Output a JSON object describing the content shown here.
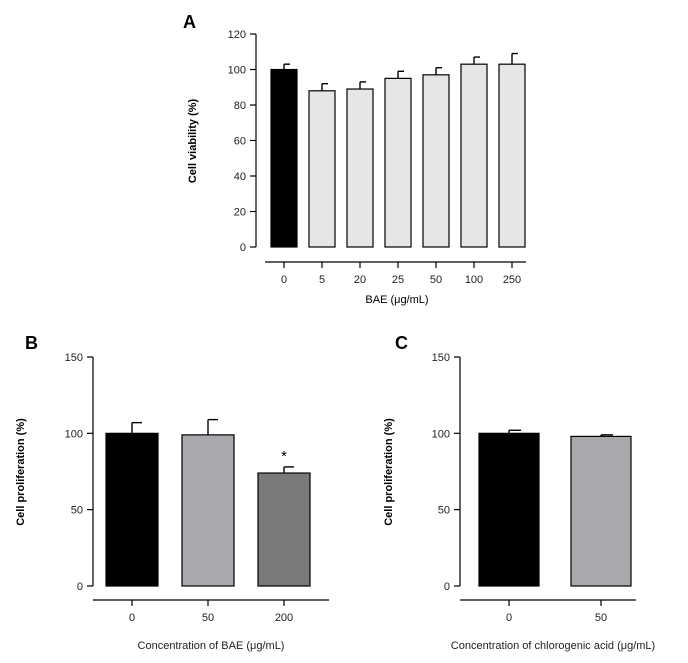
{
  "chart_data": [
    {
      "type": "bar",
      "panel": "A",
      "title": "",
      "ylabel": "Cell viability (%)",
      "xlabel": "BAE (μg/mL)",
      "ylim": [
        0,
        120
      ],
      "yticks": [
        "0",
        "20",
        "40",
        "60",
        "80",
        "100",
        "120"
      ],
      "categories": [
        "0",
        "5",
        "20",
        "25",
        "50",
        "100",
        "250"
      ],
      "values": [
        100,
        88,
        89,
        95,
        97,
        103,
        103
      ],
      "errors": [
        3,
        4,
        4,
        4,
        4,
        4,
        6
      ],
      "colors": [
        "#000000",
        "#e6e6e6",
        "#e6e6e6",
        "#e6e6e6",
        "#e6e6e6",
        "#e6e6e6",
        "#e6e6e6"
      ],
      "annotations": []
    },
    {
      "type": "bar",
      "panel": "B",
      "title": "",
      "ylabel": "Cell proliferation (%)",
      "xlabel": "Concentration of BAE (μg/mL)",
      "ylim": [
        0,
        150
      ],
      "yticks": [
        "0",
        "50",
        "100",
        "150"
      ],
      "categories": [
        "0",
        "50",
        "200"
      ],
      "values": [
        100,
        99,
        74
      ],
      "errors": [
        7,
        10,
        4
      ],
      "colors": [
        "#000000",
        "#a8a8ad",
        "#7a7a7a"
      ],
      "annotations": [
        "",
        "",
        "*"
      ]
    },
    {
      "type": "bar",
      "panel": "C",
      "title": "",
      "ylabel": "Cell proliferation (%)",
      "xlabel": "Concentration of chlorogenic acid (μg/mL)",
      "ylim": [
        0,
        150
      ],
      "yticks": [
        "0",
        "50",
        "100",
        "150"
      ],
      "categories": [
        "0",
        "50"
      ],
      "values": [
        100,
        98
      ],
      "errors": [
        2,
        1
      ],
      "colors": [
        "#000000",
        "#a8a8ad"
      ],
      "annotations": [
        "",
        ""
      ]
    }
  ]
}
